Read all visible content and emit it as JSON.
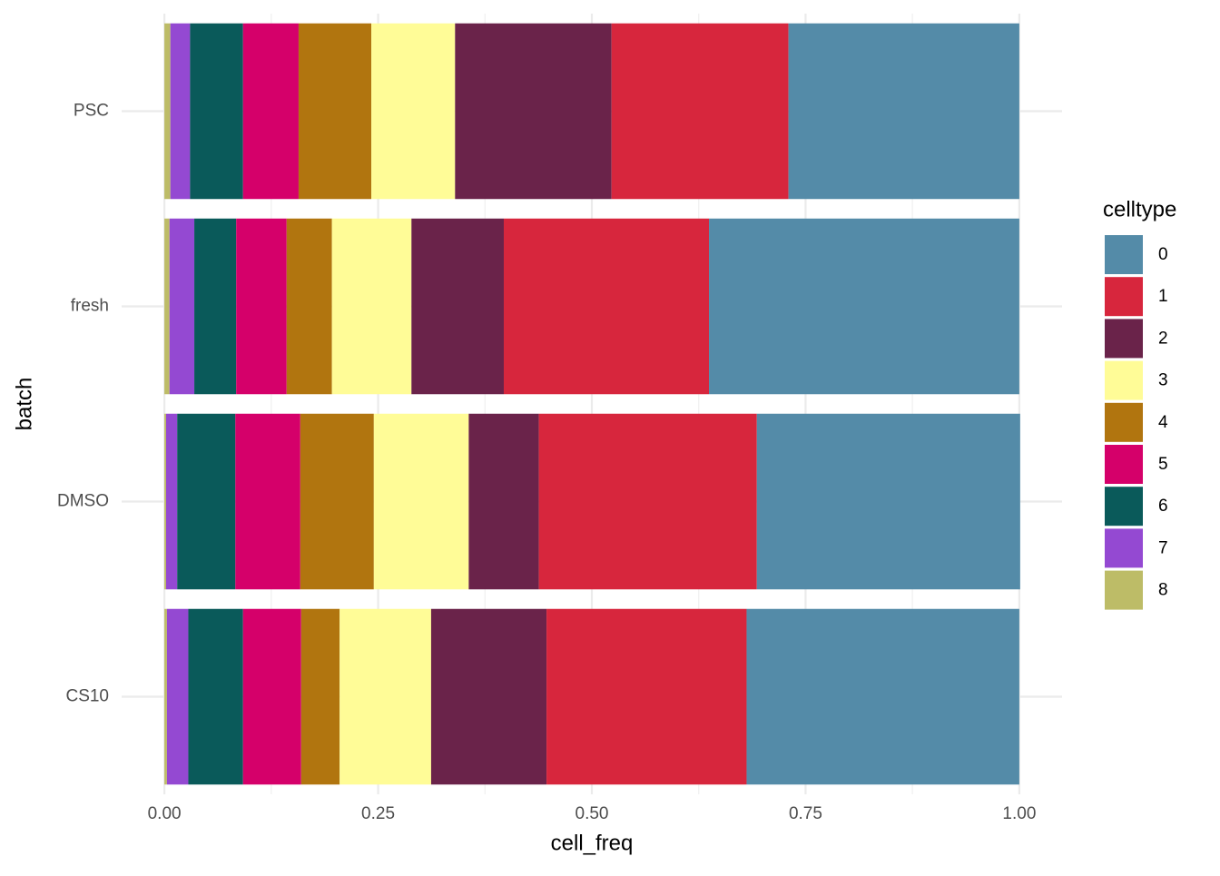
{
  "chart_data": {
    "type": "bar",
    "orientation": "horizontal",
    "stacked": true,
    "xlabel": "cell_freq",
    "ylabel": "batch",
    "legend_title": "celltype",
    "legend": "right",
    "grid": true,
    "categories": [
      "PSC",
      "fresh",
      "DMSO",
      "CS10"
    ],
    "series": [
      {
        "name": "0",
        "color": "#548BA8",
        "values": [
          0.27,
          0.363,
          0.308,
          0.319
        ]
      },
      {
        "name": "1",
        "color": "#D7263D",
        "values": [
          0.207,
          0.24,
          0.255,
          0.234
        ]
      },
      {
        "name": "2",
        "color": "#6A234A",
        "values": [
          0.183,
          0.108,
          0.082,
          0.135
        ]
      },
      {
        "name": "3",
        "color": "#FFFC97",
        "values": [
          0.098,
          0.093,
          0.111,
          0.107
        ]
      },
      {
        "name": "4",
        "color": "#B1750F",
        "values": [
          0.085,
          0.053,
          0.086,
          0.045
        ]
      },
      {
        "name": "5",
        "color": "#D5006A",
        "values": [
          0.065,
          0.059,
          0.076,
          0.068
        ]
      },
      {
        "name": "6",
        "color": "#0A5A5A",
        "values": [
          0.062,
          0.049,
          0.068,
          0.064
        ]
      },
      {
        "name": "7",
        "color": "#9449D2",
        "values": [
          0.023,
          0.029,
          0.013,
          0.025
        ]
      },
      {
        "name": "8",
        "color": "#BDBC67",
        "values": [
          0.007,
          0.006,
          0.002,
          0.003
        ]
      }
    ],
    "xlim": [
      -0.05,
      1.05
    ],
    "xticks": [
      {
        "value": 0,
        "label": "0.00"
      },
      0.25,
      {
        "value": 0.5,
        "label": "0.50"
      },
      0.75,
      {
        "value": 1,
        "label": "1.00"
      }
    ]
  }
}
